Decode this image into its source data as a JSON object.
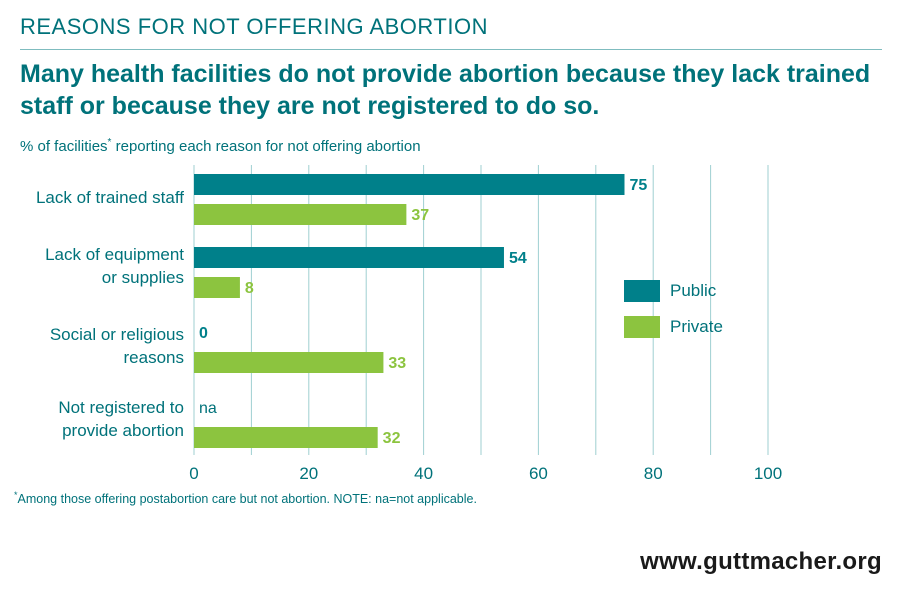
{
  "header": {
    "kicker": "REASONS FOR NOT OFFERING ABORTION",
    "headline": "Many health facilities do not provide abortion because they lack trained staff or because they are not registered to do so.",
    "subtitle_main": "% of facilities",
    "subtitle_mark": "*",
    "subtitle_rest": " reporting each reason for not offering abortion"
  },
  "footer": {
    "footnote_mark": "*",
    "footnote": "Among those offering postabortion care but not abortion. NOTE: na=not applicable.",
    "site": "www.guttmacher.org"
  },
  "colors": {
    "public": "#00808a",
    "private": "#8cc43f",
    "text": "#00727a",
    "grid": "#9fcfd1"
  },
  "chart_data": {
    "type": "bar",
    "orientation": "horizontal",
    "categories": [
      {
        "line1": "Lack of trained staff",
        "line2": ""
      },
      {
        "line1": "Lack of equipment",
        "line2": "or supplies"
      },
      {
        "line1": "Social or religious",
        "line2": "reasons"
      },
      {
        "line1": "Not registered to",
        "line2": "provide abortion"
      }
    ],
    "series": [
      {
        "name": "Public",
        "values": [
          75,
          54,
          0,
          null
        ],
        "labels": [
          "75",
          "54",
          "0",
          "na"
        ]
      },
      {
        "name": "Private",
        "values": [
          37,
          8,
          33,
          32
        ],
        "labels": [
          "37",
          "8",
          "33",
          "32"
        ]
      }
    ],
    "xlim": [
      0,
      100
    ],
    "xticks": [
      "0",
      "20",
      "40",
      "60",
      "80",
      "100"
    ],
    "grid": true,
    "legend": "right"
  }
}
